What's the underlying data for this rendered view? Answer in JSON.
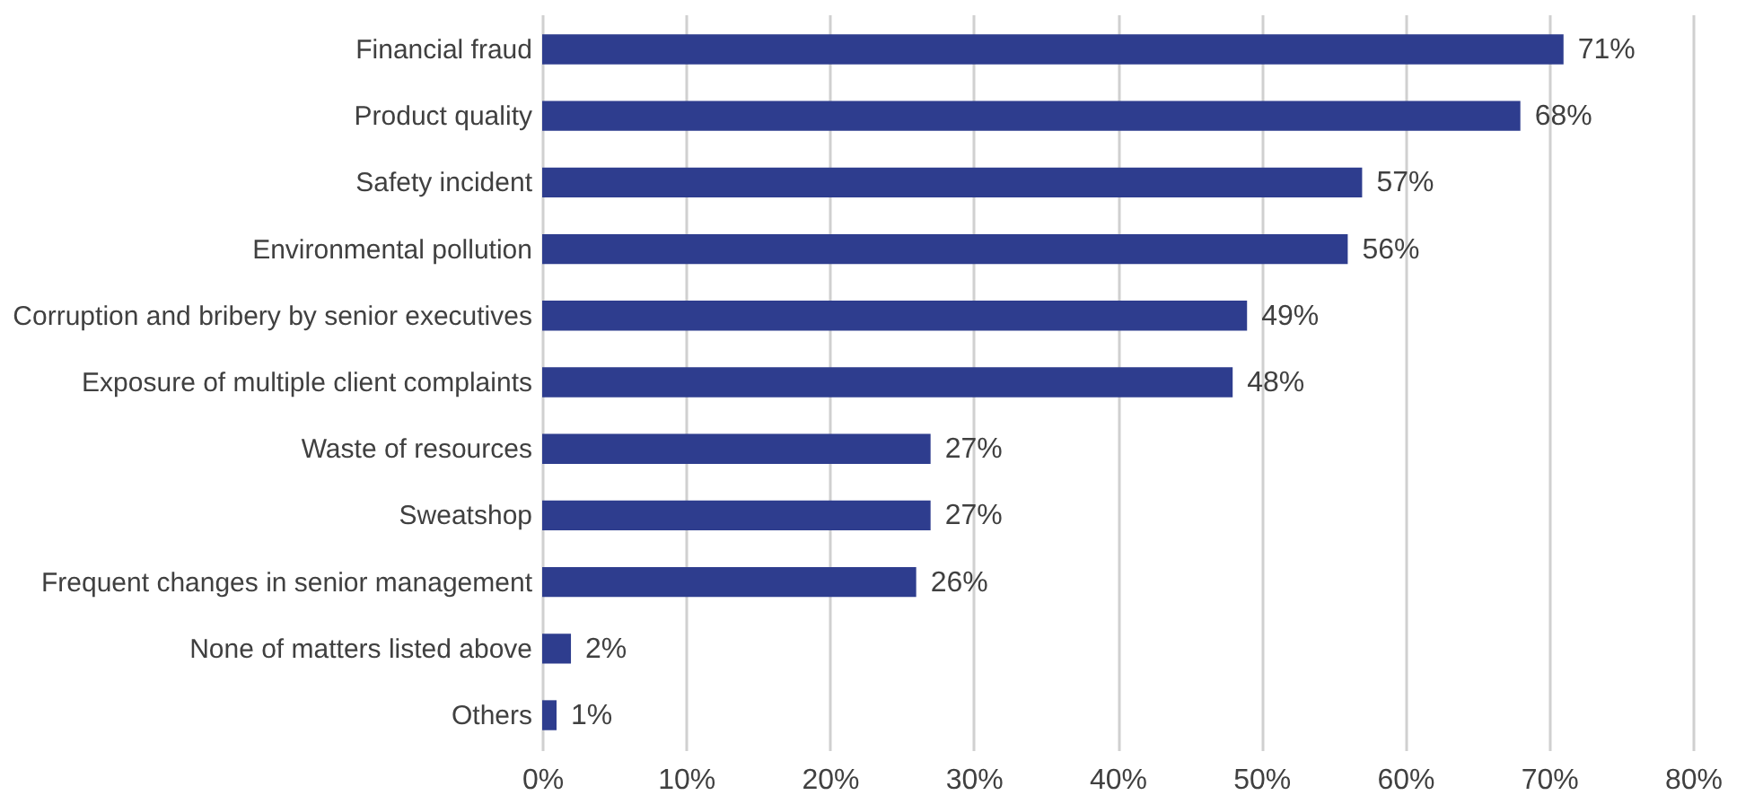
{
  "chart_data": {
    "type": "bar",
    "orientation": "horizontal",
    "categories": [
      "Financial fraud",
      "Product quality",
      "Safety incident",
      "Environmental pollution",
      "Corruption and bribery by senior executives",
      "Exposure of multiple client complaints",
      "Waste of resources",
      "Sweatshop",
      "Frequent changes in senior management",
      "None of matters listed above",
      "Others"
    ],
    "values": [
      71,
      68,
      57,
      56,
      49,
      48,
      27,
      27,
      26,
      2,
      1
    ],
    "value_labels": [
      "71%",
      "68%",
      "57%",
      "56%",
      "49%",
      "48%",
      "27%",
      "27%",
      "26%",
      "2%",
      "1%"
    ],
    "color": "#2e3d8e",
    "xlim": [
      0,
      80
    ],
    "xticks": [
      {
        "value": 0,
        "label": "0%"
      },
      {
        "value": 10,
        "label": "10%"
      },
      {
        "value": 20,
        "label": "20%"
      },
      {
        "value": 30,
        "label": "30%"
      },
      {
        "value": 40,
        "label": "40%"
      },
      {
        "value": 50,
        "label": "50%"
      },
      {
        "value": 60,
        "label": "60%"
      },
      {
        "value": 70,
        "label": "70%"
      },
      {
        "value": 80,
        "label": "80%"
      }
    ],
    "grid": "x"
  }
}
